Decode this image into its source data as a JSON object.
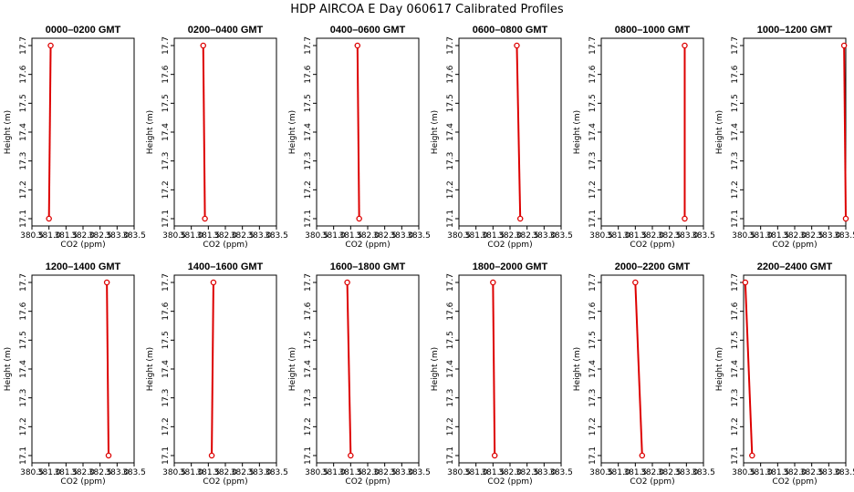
{
  "figure_title": "HDP AIRCOA E  Day 060617  Calibrated Profiles",
  "colors": {
    "line": "#dd0000",
    "axis": "#000000",
    "background": "#ffffff"
  },
  "chart_data": [
    {
      "type": "line",
      "title": "0000–0200 GMT",
      "xlabel": "CO2 (ppm)",
      "ylabel": "Height (m)",
      "xlim": [
        380.5,
        383.5
      ],
      "ylim": [
        17.1,
        17.7
      ],
      "xticks": [
        "380.5",
        "381.0",
        "381.5",
        "382.0",
        "382.5",
        "383.0",
        "383.5"
      ],
      "yticks": [
        "17.1",
        "17.2",
        "17.3",
        "17.4",
        "17.5",
        "17.6",
        "17.7"
      ],
      "series": [
        {
          "x": [
            381.0,
            381.05
          ],
          "y": [
            17.1,
            17.7
          ]
        }
      ]
    },
    {
      "type": "line",
      "title": "0200–0400 GMT",
      "xlabel": "CO2 (ppm)",
      "ylabel": "Height (m)",
      "xlim": [
        380.5,
        383.5
      ],
      "ylim": [
        17.1,
        17.7
      ],
      "xticks": [
        "380.5",
        "381.0",
        "381.5",
        "382.0",
        "382.5",
        "383.0",
        "383.5"
      ],
      "yticks": [
        "17.1",
        "17.2",
        "17.3",
        "17.4",
        "17.5",
        "17.6",
        "17.7"
      ],
      "series": [
        {
          "x": [
            381.4,
            381.35
          ],
          "y": [
            17.1,
            17.7
          ]
        }
      ]
    },
    {
      "type": "line",
      "title": "0400–0600 GMT",
      "xlabel": "CO2 (ppm)",
      "ylabel": "Height (m)",
      "xlim": [
        380.5,
        383.5
      ],
      "ylim": [
        17.1,
        17.7
      ],
      "xticks": [
        "380.5",
        "381.0",
        "381.5",
        "382.0",
        "382.5",
        "383.0",
        "383.5"
      ],
      "yticks": [
        "17.1",
        "17.2",
        "17.3",
        "17.4",
        "17.5",
        "17.6",
        "17.7"
      ],
      "series": [
        {
          "x": [
            381.75,
            381.7
          ],
          "y": [
            17.1,
            17.7
          ]
        }
      ]
    },
    {
      "type": "line",
      "title": "0600–0800 GMT",
      "xlabel": "CO2 (ppm)",
      "ylabel": "Height (m)",
      "xlim": [
        380.5,
        383.5
      ],
      "ylim": [
        17.1,
        17.7
      ],
      "xticks": [
        "380.5",
        "381.0",
        "381.5",
        "382.0",
        "382.5",
        "383.0",
        "383.5"
      ],
      "yticks": [
        "17.1",
        "17.2",
        "17.3",
        "17.4",
        "17.5",
        "17.6",
        "17.7"
      ],
      "series": [
        {
          "x": [
            382.3,
            382.2
          ],
          "y": [
            17.1,
            17.7
          ]
        }
      ]
    },
    {
      "type": "line",
      "title": "0800–1000 GMT",
      "xlabel": "CO2 (ppm)",
      "ylabel": "Height (m)",
      "xlim": [
        380.5,
        383.5
      ],
      "ylim": [
        17.1,
        17.7
      ],
      "xticks": [
        "380.5",
        "381.0",
        "381.5",
        "382.0",
        "382.5",
        "383.0",
        "383.5"
      ],
      "yticks": [
        "17.1",
        "17.2",
        "17.3",
        "17.4",
        "17.5",
        "17.6",
        "17.7"
      ],
      "series": [
        {
          "x": [
            382.95,
            382.95
          ],
          "y": [
            17.1,
            17.7
          ]
        }
      ]
    },
    {
      "type": "line",
      "title": "1000–1200 GMT",
      "xlabel": "CO2 (ppm)",
      "ylabel": "Height (m)",
      "xlim": [
        380.5,
        383.5
      ],
      "ylim": [
        17.1,
        17.7
      ],
      "xticks": [
        "380.5",
        "381.0",
        "381.5",
        "382.0",
        "382.5",
        "383.0",
        "383.5"
      ],
      "yticks": [
        "17.1",
        "17.2",
        "17.3",
        "17.4",
        "17.5",
        "17.6",
        "17.7"
      ],
      "series": [
        {
          "x": [
            383.5,
            383.45
          ],
          "y": [
            17.1,
            17.7
          ]
        }
      ]
    },
    {
      "type": "line",
      "title": "1200–1400 GMT",
      "xlabel": "CO2 (ppm)",
      "ylabel": "Height (m)",
      "xlim": [
        380.5,
        383.5
      ],
      "ylim": [
        17.1,
        17.7
      ],
      "xticks": [
        "380.5",
        "381.0",
        "381.5",
        "382.0",
        "382.5",
        "383.0",
        "383.5"
      ],
      "yticks": [
        "17.1",
        "17.2",
        "17.3",
        "17.4",
        "17.5",
        "17.6",
        "17.7"
      ],
      "series": [
        {
          "x": [
            382.75,
            382.7
          ],
          "y": [
            17.1,
            17.7
          ]
        }
      ]
    },
    {
      "type": "line",
      "title": "1400–1600 GMT",
      "xlabel": "CO2 (ppm)",
      "ylabel": "Height (m)",
      "xlim": [
        380.5,
        383.5
      ],
      "ylim": [
        17.1,
        17.7
      ],
      "xticks": [
        "380.5",
        "381.0",
        "381.5",
        "382.0",
        "382.5",
        "383.0",
        "383.5"
      ],
      "yticks": [
        "17.1",
        "17.2",
        "17.3",
        "17.4",
        "17.5",
        "17.6",
        "17.7"
      ],
      "series": [
        {
          "x": [
            381.6,
            381.65
          ],
          "y": [
            17.1,
            17.7
          ]
        }
      ]
    },
    {
      "type": "line",
      "title": "1600–1800 GMT",
      "xlabel": "CO2 (ppm)",
      "ylabel": "Height (m)",
      "xlim": [
        380.5,
        383.5
      ],
      "ylim": [
        17.1,
        17.7
      ],
      "xticks": [
        "380.5",
        "381.0",
        "381.5",
        "382.0",
        "382.5",
        "383.0",
        "383.5"
      ],
      "yticks": [
        "17.1",
        "17.2",
        "17.3",
        "17.4",
        "17.5",
        "17.6",
        "17.7"
      ],
      "series": [
        {
          "x": [
            381.5,
            381.4
          ],
          "y": [
            17.1,
            17.7
          ]
        }
      ]
    },
    {
      "type": "line",
      "title": "1800–2000 GMT",
      "xlabel": "CO2 (ppm)",
      "ylabel": "Height (m)",
      "xlim": [
        380.5,
        383.5
      ],
      "ylim": [
        17.1,
        17.7
      ],
      "xticks": [
        "380.5",
        "381.0",
        "381.5",
        "382.0",
        "382.5",
        "383.0",
        "383.5"
      ],
      "yticks": [
        "17.1",
        "17.2",
        "17.3",
        "17.4",
        "17.5",
        "17.6",
        "17.7"
      ],
      "series": [
        {
          "x": [
            381.55,
            381.5
          ],
          "y": [
            17.1,
            17.7
          ]
        }
      ]
    },
    {
      "type": "line",
      "title": "2000–2200 GMT",
      "xlabel": "CO2 (ppm)",
      "ylabel": "Height (m)",
      "xlim": [
        380.5,
        383.5
      ],
      "ylim": [
        17.1,
        17.7
      ],
      "xticks": [
        "380.5",
        "381.0",
        "381.5",
        "382.0",
        "382.5",
        "383.0",
        "383.5"
      ],
      "yticks": [
        "17.1",
        "17.2",
        "17.3",
        "17.4",
        "17.5",
        "17.6",
        "17.7"
      ],
      "series": [
        {
          "x": [
            381.7,
            381.5
          ],
          "y": [
            17.1,
            17.7
          ]
        }
      ]
    },
    {
      "type": "line",
      "title": "2200–2400 GMT",
      "xlabel": "CO2 (ppm)",
      "ylabel": "Height (m)",
      "xlim": [
        380.5,
        383.5
      ],
      "ylim": [
        17.1,
        17.7
      ],
      "xticks": [
        "380.5",
        "381.0",
        "381.5",
        "382.0",
        "382.5",
        "383.0",
        "383.5"
      ],
      "yticks": [
        "17.1",
        "17.2",
        "17.3",
        "17.4",
        "17.5",
        "17.6",
        "17.7"
      ],
      "series": [
        {
          "x": [
            380.75,
            380.55
          ],
          "y": [
            17.1,
            17.7
          ]
        }
      ]
    }
  ]
}
